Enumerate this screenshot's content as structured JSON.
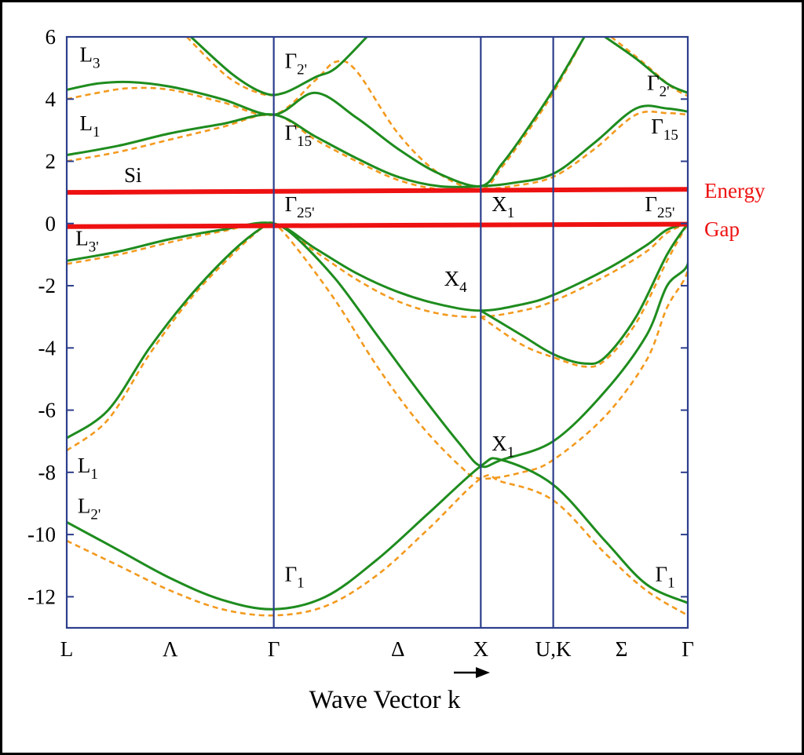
{
  "chart_data": {
    "type": "line",
    "title": "",
    "xlabel": "Wave Vector k",
    "ylabel": "",
    "ylim": [
      -13,
      6
    ],
    "yticks": [
      6,
      4,
      2,
      0,
      -2,
      -4,
      -6,
      -8,
      -10,
      -12
    ],
    "ytick_labels": [
      "6",
      "4",
      "2",
      "0",
      "-2",
      "-4",
      "-6",
      "-8",
      "-10",
      "-12"
    ],
    "k_points": [
      {
        "label": "L",
        "x": 0
      },
      {
        "label": "Λ",
        "x": 0.5
      },
      {
        "label": "Γ",
        "x": 1.0
      },
      {
        "label": "Δ",
        "x": 1.6
      },
      {
        "label": "X",
        "x": 2.0
      },
      {
        "label": "U,K",
        "x": 2.35
      },
      {
        "label": "Σ",
        "x": 2.68
      },
      {
        "label": "Γ",
        "x": 3.0
      }
    ],
    "vertical_lines_at": [
      1.0,
      2.0,
      2.35
    ],
    "material_label": "Si",
    "gap_lines": {
      "color": "#ee1111",
      "valence_top": -0.1,
      "conduction_bottom": 1.0
    },
    "gap_labels": [
      "Energy",
      "Gap"
    ],
    "colors": {
      "axis": "#2c3e8c",
      "solid": "#1e8c1e",
      "dashed": "#f39a1e",
      "gap": "#ee1111"
    },
    "point_labels": [
      {
        "main": "L",
        "sub": "3",
        "x": 0.04,
        "y": 5.2
      },
      {
        "main": "L",
        "sub": "1",
        "x": 0.04,
        "y": 3.0
      },
      {
        "main": "L",
        "sub": "3'",
        "x": 0.02,
        "y": -0.7
      },
      {
        "main": "L",
        "sub": "1",
        "x": 0.03,
        "y": -8.0
      },
      {
        "main": "L",
        "sub": "2'",
        "x": 0.03,
        "y": -9.3
      },
      {
        "main": "Γ",
        "sub": "2'",
        "x": 1.03,
        "y": 5.0
      },
      {
        "main": "Γ",
        "sub": "15",
        "x": 1.03,
        "y": 2.7
      },
      {
        "main": "Γ",
        "sub": "25'",
        "x": 1.03,
        "y": 0.4
      },
      {
        "main": "Γ",
        "sub": "1",
        "x": 1.03,
        "y": -11.5
      },
      {
        "main": "X",
        "sub": "1",
        "x": 2.03,
        "y": 0.4
      },
      {
        "main": "X",
        "sub": "4",
        "x": 1.8,
        "y": -2.0
      },
      {
        "main": "X",
        "sub": "1",
        "x": 2.03,
        "y": -7.3
      },
      {
        "main": "Γ",
        "sub": "2'",
        "x": 2.78,
        "y": 4.3
      },
      {
        "main": "Γ",
        "sub": "15",
        "x": 2.8,
        "y": 2.9
      },
      {
        "main": "Γ",
        "sub": "25'",
        "x": 2.77,
        "y": 0.4
      },
      {
        "main": "Γ",
        "sub": "1",
        "x": 2.82,
        "y": -11.5
      }
    ],
    "series": [
      {
        "style": "solid",
        "points": [
          [
            0,
            -9.6
          ],
          [
            0.25,
            -10.5
          ],
          [
            0.5,
            -11.4
          ],
          [
            0.75,
            -12.1
          ],
          [
            1.0,
            -12.4
          ],
          [
            1.25,
            -12.0
          ],
          [
            1.5,
            -10.8
          ],
          [
            1.75,
            -9.3
          ],
          [
            2.0,
            -7.8
          ],
          [
            2.1,
            -7.6
          ],
          [
            2.35,
            -8.4
          ],
          [
            2.6,
            -10.2
          ],
          [
            2.8,
            -11.6
          ],
          [
            3.0,
            -12.2
          ]
        ]
      },
      {
        "style": "solid",
        "points": [
          [
            0,
            -6.9
          ],
          [
            0.2,
            -6.0
          ],
          [
            0.4,
            -4.0
          ],
          [
            0.6,
            -2.3
          ],
          [
            0.8,
            -0.9
          ],
          [
            0.95,
            -0.1
          ],
          [
            1.0,
            0
          ],
          [
            1.1,
            -0.4
          ],
          [
            1.3,
            -1.8
          ],
          [
            1.5,
            -3.6
          ],
          [
            1.7,
            -5.4
          ],
          [
            1.9,
            -7.1
          ],
          [
            2.0,
            -7.8
          ],
          [
            2.1,
            -7.6
          ],
          [
            2.35,
            -7.0
          ],
          [
            2.6,
            -5.4
          ],
          [
            2.8,
            -3.6
          ],
          [
            2.9,
            -2.0
          ],
          [
            3.0,
            -1.3
          ],
          [
            3.0,
            0
          ]
        ]
      },
      {
        "style": "solid",
        "points": [
          [
            0,
            -1.2
          ],
          [
            0.25,
            -0.9
          ],
          [
            0.5,
            -0.5
          ],
          [
            0.75,
            -0.2
          ],
          [
            1.0,
            0
          ],
          [
            1.2,
            -0.8
          ],
          [
            1.4,
            -1.6
          ],
          [
            1.6,
            -2.2
          ],
          [
            1.8,
            -2.6
          ],
          [
            2.0,
            -2.8
          ],
          [
            2.2,
            -2.6
          ],
          [
            2.35,
            -2.3
          ],
          [
            2.6,
            -1.5
          ],
          [
            2.8,
            -0.7
          ],
          [
            2.9,
            -0.2
          ],
          [
            3.0,
            0
          ]
        ]
      },
      {
        "style": "solid",
        "points": [
          [
            2.0,
            -2.8
          ],
          [
            2.2,
            -3.6
          ],
          [
            2.35,
            -4.2
          ],
          [
            2.5,
            -4.5
          ],
          [
            2.6,
            -4.3
          ],
          [
            2.75,
            -3.0
          ],
          [
            2.9,
            -1.0
          ],
          [
            3.0,
            0
          ]
        ]
      },
      {
        "style": "solid",
        "points": [
          [
            0,
            2.2
          ],
          [
            0.25,
            2.5
          ],
          [
            0.5,
            2.9
          ],
          [
            0.75,
            3.2
          ],
          [
            1.0,
            3.5
          ],
          [
            1.2,
            2.8
          ],
          [
            1.4,
            2.1
          ],
          [
            1.6,
            1.5
          ],
          [
            1.8,
            1.2
          ],
          [
            2.0,
            1.2
          ],
          [
            2.15,
            1.3
          ],
          [
            2.35,
            1.6
          ],
          [
            2.55,
            2.6
          ],
          [
            2.75,
            3.7
          ],
          [
            2.9,
            3.7
          ],
          [
            3.0,
            3.6
          ]
        ]
      },
      {
        "style": "solid",
        "points": [
          [
            0,
            4.3
          ],
          [
            0.15,
            4.5
          ],
          [
            0.3,
            4.55
          ],
          [
            0.5,
            4.4
          ],
          [
            0.75,
            4.0
          ],
          [
            1.0,
            3.5
          ],
          [
            1.2,
            4.2
          ],
          [
            1.4,
            3.4
          ],
          [
            1.6,
            2.4
          ],
          [
            1.8,
            1.6
          ],
          [
            2.0,
            1.2
          ],
          [
            2.1,
            1.9
          ],
          [
            2.2,
            2.8
          ],
          [
            2.35,
            4.3
          ],
          [
            2.5,
            6.0
          ]
        ]
      },
      {
        "style": "solid",
        "points": [
          [
            0.6,
            6.0
          ],
          [
            0.8,
            4.8
          ],
          [
            0.95,
            4.2
          ],
          [
            1.05,
            4.2
          ],
          [
            1.2,
            4.7
          ],
          [
            1.3,
            5.0
          ],
          [
            1.45,
            6.0
          ]
        ]
      },
      {
        "style": "solid",
        "points": [
          [
            2.6,
            6.0
          ],
          [
            2.75,
            5.3
          ],
          [
            2.9,
            4.5
          ],
          [
            3.0,
            4.2
          ]
        ]
      },
      {
        "style": "dashed",
        "points": [
          [
            0,
            -10.2
          ],
          [
            0.25,
            -11.0
          ],
          [
            0.5,
            -11.8
          ],
          [
            0.75,
            -12.4
          ],
          [
            1.0,
            -12.6
          ],
          [
            1.25,
            -12.3
          ],
          [
            1.5,
            -11.3
          ],
          [
            1.75,
            -9.8
          ],
          [
            2.0,
            -8.2
          ],
          [
            2.1,
            -8.3
          ],
          [
            2.35,
            -8.9
          ],
          [
            2.6,
            -10.6
          ],
          [
            2.8,
            -11.8
          ],
          [
            3.0,
            -12.6
          ]
        ]
      },
      {
        "style": "dashed",
        "points": [
          [
            0,
            -7.3
          ],
          [
            0.2,
            -6.3
          ],
          [
            0.4,
            -4.2
          ],
          [
            0.6,
            -2.4
          ],
          [
            0.8,
            -1.0
          ],
          [
            0.95,
            -0.1
          ],
          [
            1.0,
            0
          ],
          [
            1.1,
            -0.7
          ],
          [
            1.3,
            -2.5
          ],
          [
            1.5,
            -4.6
          ],
          [
            1.7,
            -6.4
          ],
          [
            1.9,
            -7.8
          ],
          [
            2.0,
            -8.2
          ],
          [
            2.2,
            -8.0
          ],
          [
            2.35,
            -7.6
          ],
          [
            2.6,
            -6.2
          ],
          [
            2.8,
            -4.4
          ],
          [
            2.9,
            -2.7
          ],
          [
            3.0,
            -1.5
          ],
          [
            3.0,
            0
          ]
        ]
      },
      {
        "style": "dashed",
        "points": [
          [
            0,
            -1.3
          ],
          [
            0.25,
            -1.0
          ],
          [
            0.5,
            -0.6
          ],
          [
            0.75,
            -0.25
          ],
          [
            1.0,
            0
          ],
          [
            1.2,
            -0.9
          ],
          [
            1.4,
            -1.8
          ],
          [
            1.6,
            -2.5
          ],
          [
            1.8,
            -2.9
          ],
          [
            2.0,
            -3.0
          ],
          [
            2.2,
            -2.8
          ],
          [
            2.35,
            -2.5
          ],
          [
            2.6,
            -1.7
          ],
          [
            2.8,
            -0.9
          ],
          [
            2.9,
            -0.3
          ],
          [
            3.0,
            0
          ]
        ]
      },
      {
        "style": "dashed",
        "points": [
          [
            2.0,
            -3.0
          ],
          [
            2.2,
            -3.9
          ],
          [
            2.35,
            -4.3
          ],
          [
            2.5,
            -4.6
          ],
          [
            2.6,
            -4.4
          ],
          [
            2.75,
            -3.2
          ],
          [
            2.9,
            -1.2
          ],
          [
            3.0,
            0
          ]
        ]
      },
      {
        "style": "dashed",
        "points": [
          [
            0,
            2.0
          ],
          [
            0.25,
            2.3
          ],
          [
            0.5,
            2.7
          ],
          [
            0.75,
            3.1
          ],
          [
            1.0,
            3.5
          ],
          [
            1.2,
            2.7
          ],
          [
            1.4,
            2.0
          ],
          [
            1.6,
            1.4
          ],
          [
            1.8,
            1.1
          ],
          [
            2.0,
            1.1
          ],
          [
            2.15,
            1.2
          ],
          [
            2.35,
            1.5
          ],
          [
            2.55,
            2.4
          ],
          [
            2.75,
            3.5
          ],
          [
            2.9,
            3.55
          ],
          [
            3.0,
            3.5
          ]
        ]
      },
      {
        "style": "dashed",
        "points": [
          [
            0,
            4.0
          ],
          [
            0.15,
            4.2
          ],
          [
            0.3,
            4.35
          ],
          [
            0.5,
            4.3
          ],
          [
            0.75,
            3.9
          ],
          [
            1.0,
            3.5
          ],
          [
            1.2,
            4.6
          ],
          [
            1.3,
            5.2
          ],
          [
            1.4,
            4.9
          ],
          [
            1.6,
            2.9
          ],
          [
            1.8,
            1.6
          ],
          [
            2.0,
            1.1
          ],
          [
            2.1,
            1.8
          ],
          [
            2.2,
            2.7
          ],
          [
            2.35,
            4.2
          ],
          [
            2.5,
            6.0
          ]
        ]
      },
      {
        "style": "dashed",
        "points": [
          [
            0.58,
            6.0
          ],
          [
            0.78,
            4.7
          ],
          [
            0.95,
            4.15
          ],
          [
            1.05,
            4.2
          ]
        ]
      },
      {
        "style": "dashed",
        "points": [
          [
            2.63,
            6.0
          ],
          [
            2.78,
            5.2
          ],
          [
            2.92,
            4.4
          ],
          [
            3.0,
            4.1
          ]
        ]
      }
    ]
  }
}
